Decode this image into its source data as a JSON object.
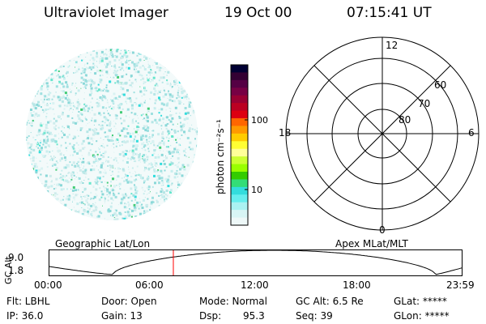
{
  "header": {
    "instrument": "Ultraviolet Imager",
    "date": "19 Oct 00",
    "time": "07:15:41 UT"
  },
  "colorbar": {
    "unit_label": "photon cm⁻²s⁻¹",
    "ticks": [
      "100",
      "10"
    ],
    "colors": [
      "#000033",
      "#330033",
      "#550044",
      "#770044",
      "#990033",
      "#bb0022",
      "#dd0011",
      "#ff6600",
      "#ff9900",
      "#ffcc00",
      "#ffff33",
      "#ffff99",
      "#ccff33",
      "#99ff00",
      "#33cc00",
      "#33dd77",
      "#33dddd",
      "#66eeee",
      "#aaf2f2",
      "#d8f5f5",
      "#eef8f8"
    ]
  },
  "polar_plot": {
    "mlt_labels": [
      "12",
      "18",
      "6",
      "0"
    ],
    "lat_labels": [
      "60",
      "70",
      "80"
    ]
  },
  "timeline": {
    "left_label": "Geographic Lat/Lon",
    "right_label": "Apex MLat/MLT",
    "axis_title": "GC Alt",
    "y_ticks": [
      "9.0",
      "1.8"
    ],
    "x_ticks": [
      "00:00",
      "06:00",
      "12:00",
      "18:00",
      "23:59"
    ],
    "marker_color": "#ff0000"
  },
  "status": {
    "flt": "Flt: LBHL",
    "door": "Door: Open",
    "mode": "Mode: Normal",
    "gc_alt": "GC Alt: 6.5 Re",
    "glat": "GLat: *****",
    "ip": "IP: 36.0",
    "gain": "Gain: 13",
    "dsp_label": "Dsp:",
    "dsp_value": "95.3",
    "seq": "Seq: 39",
    "glon": "GLon: *****"
  }
}
